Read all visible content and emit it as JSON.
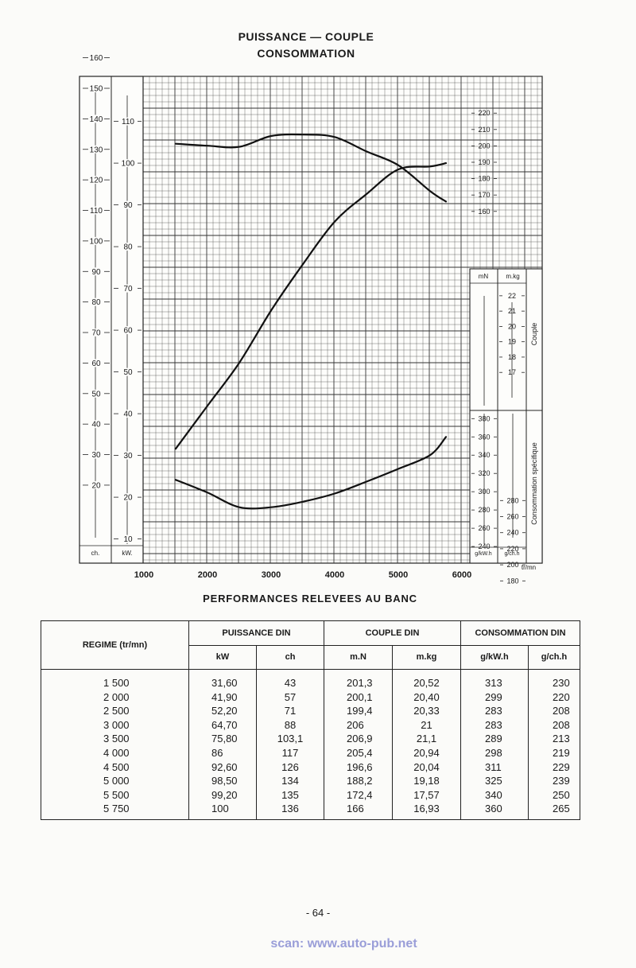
{
  "page": {
    "title_line1": "PUISSANCE — COUPLE",
    "title_line2": "CONSOMMATION",
    "subheading": "PERFORMANCES RELEVEES AU BANC",
    "page_number": "- 64 -",
    "scan_credit": "scan: www.auto-pub.net"
  },
  "chart_data": {
    "type": "line",
    "x_unit": "tr/mn",
    "x_ticks": [
      1000,
      2000,
      3000,
      4000,
      5000,
      6000
    ],
    "xlim": [
      1000,
      6000
    ],
    "grid": true,
    "axes": {
      "ch": {
        "unit": "ch.",
        "range": [
          0,
          165
        ],
        "ticks": [
          20,
          30,
          40,
          50,
          60,
          70,
          80,
          90,
          100,
          110,
          120,
          130,
          140,
          150,
          160
        ]
      },
      "kw": {
        "unit": "kW.",
        "range": [
          0,
          120
        ],
        "ticks": [
          10,
          20,
          30,
          40,
          50,
          60,
          70,
          80,
          90,
          100,
          110
        ]
      },
      "mn": {
        "unit": "mN",
        "range": [
          155,
          225
        ],
        "ticks": [
          160,
          170,
          180,
          190,
          200,
          210,
          220
        ]
      },
      "mkg": {
        "unit": "m.kg",
        "ticks": [
          17,
          18,
          19,
          20,
          21,
          22
        ]
      },
      "gkwh": {
        "unit": "g/kW.h",
        "range": [
          225,
          390
        ],
        "ticks": [
          240,
          260,
          280,
          300,
          320,
          340,
          360,
          380
        ]
      },
      "gchh": {
        "unit": "g/ch.h",
        "ticks": [
          180,
          200,
          220,
          240,
          260,
          280
        ]
      }
    },
    "side_labels": {
      "couple": "Couple",
      "consommation": "Consommation spécifique"
    },
    "series": [
      {
        "key": "puissance",
        "x": [
          1500,
          2000,
          2500,
          3000,
          3500,
          4000,
          4500,
          5000,
          5500,
          5750
        ],
        "y": [
          31.6,
          41.9,
          52.2,
          64.7,
          75.8,
          86,
          92.6,
          98.5,
          99.2,
          100
        ]
      },
      {
        "key": "couple",
        "x": [
          1500,
          2000,
          2500,
          3000,
          3500,
          4000,
          4500,
          5000,
          5500,
          5750
        ],
        "y": [
          201.3,
          200.1,
          199.4,
          206,
          206.9,
          205.4,
          196.6,
          188.2,
          172.4,
          166
        ]
      },
      {
        "key": "consommation",
        "x": [
          1500,
          2000,
          2500,
          3000,
          3500,
          4000,
          4500,
          5000,
          5500,
          5750
        ],
        "y": [
          313,
          299,
          283,
          283,
          289,
          298,
          311,
          325,
          340,
          360
        ]
      }
    ]
  },
  "table": {
    "regime_header": "REGIME (tr/mn)",
    "groups": [
      "PUISSANCE DIN",
      "COUPLE DIN",
      "CONSOMMATION DIN"
    ],
    "subheaders": [
      "kW",
      "ch",
      "m.N",
      "m.kg",
      "g/kW.h",
      "g/ch.h"
    ],
    "rows": [
      [
        "1 500",
        "31,60",
        "43",
        "201,3",
        "20,52",
        "313",
        "230"
      ],
      [
        "2 000",
        "41,90",
        "57",
        "200,1",
        "20,40",
        "299",
        "220"
      ],
      [
        "2 500",
        "52,20",
        "71",
        "199,4",
        "20,33",
        "283",
        "208"
      ],
      [
        "3 000",
        "64,70",
        "88",
        "206",
        "21",
        "283",
        "208"
      ],
      [
        "3 500",
        "75,80",
        "103,1",
        "206,9",
        "21,1",
        "289",
        "213"
      ],
      [
        "4 000",
        "86",
        "117",
        "205,4",
        "20,94",
        "298",
        "219"
      ],
      [
        "4 500",
        "92,60",
        "126",
        "196,6",
        "20,04",
        "311",
        "229"
      ],
      [
        "5 000",
        "98,50",
        "134",
        "188,2",
        "19,18",
        "325",
        "239"
      ],
      [
        "5 500",
        "99,20",
        "135",
        "172,4",
        "17,57",
        "340",
        "250"
      ],
      [
        "5 750",
        "100",
        "136",
        "166",
        "16,93",
        "360",
        "265"
      ]
    ]
  }
}
